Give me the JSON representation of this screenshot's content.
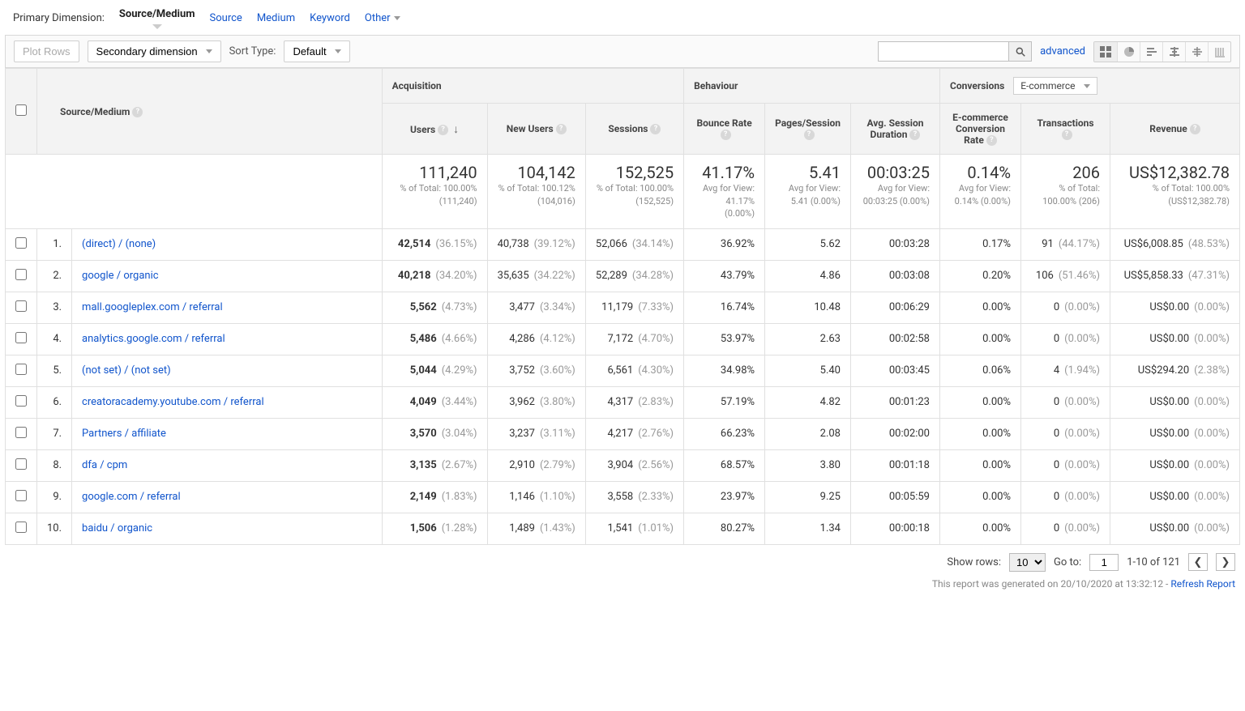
{
  "colors": {
    "link": "#1155cc",
    "header_bg": "#f3f3f3",
    "border": "#e0e0e0",
    "muted": "#999999"
  },
  "primary_dimension": {
    "label": "Primary Dimension:",
    "active": "Source/Medium",
    "options": [
      "Source",
      "Medium",
      "Keyword",
      "Other"
    ]
  },
  "toolbar": {
    "plot_rows": "Plot Rows",
    "secondary_dim": "Secondary dimension",
    "sort_type_label": "Sort Type:",
    "sort_type_value": "Default",
    "advanced": "advanced"
  },
  "columns": {
    "source_medium": "Source/Medium",
    "acquisition": "Acquisition",
    "behaviour": "Behaviour",
    "conversions": "Conversions",
    "conversions_dd": "E-commerce",
    "users": "Users",
    "new_users": "New Users",
    "sessions": "Sessions",
    "bounce": "Bounce Rate",
    "pps": "Pages/Session",
    "dur": "Avg. Session Duration",
    "conv_rate": "E-commerce Conversion Rate",
    "trans": "Transactions",
    "rev": "Revenue"
  },
  "summary": {
    "users": {
      "big": "111,240",
      "small": "% of Total: 100.00% (111,240)"
    },
    "new_users": {
      "big": "104,142",
      "small": "% of Total: 100.12% (104,016)"
    },
    "sessions": {
      "big": "152,525",
      "small": "% of Total: 100.00% (152,525)"
    },
    "bounce": {
      "big": "41.17%",
      "small": "Avg for View: 41.17% (0.00%)"
    },
    "pps": {
      "big": "5.41",
      "small": "Avg for View: 5.41 (0.00%)"
    },
    "dur": {
      "big": "00:03:25",
      "small": "Avg for View: 00:03:25 (0.00%)"
    },
    "conv_rate": {
      "big": "0.14%",
      "small": "Avg for View: 0.14% (0.00%)"
    },
    "trans": {
      "big": "206",
      "small": "% of Total: 100.00% (206)"
    },
    "rev": {
      "big": "US$12,382.78",
      "small": "% of Total: 100.00% (US$12,382.78)"
    }
  },
  "rows": [
    {
      "idx": "1.",
      "name": "(direct) / (none)",
      "users": "42,514",
      "users_pct": "(36.15%)",
      "new": "40,738",
      "new_pct": "(39.12%)",
      "sess": "52,066",
      "sess_pct": "(34.14%)",
      "bounce": "36.92%",
      "pps": "5.62",
      "dur": "00:03:28",
      "conv": "0.17%",
      "trans": "91",
      "trans_pct": "(44.17%)",
      "rev": "US$6,008.85",
      "rev_pct": "(48.53%)"
    },
    {
      "idx": "2.",
      "name": "google / organic",
      "users": "40,218",
      "users_pct": "(34.20%)",
      "new": "35,635",
      "new_pct": "(34.22%)",
      "sess": "52,289",
      "sess_pct": "(34.28%)",
      "bounce": "43.79%",
      "pps": "4.86",
      "dur": "00:03:08",
      "conv": "0.20%",
      "trans": "106",
      "trans_pct": "(51.46%)",
      "rev": "US$5,858.33",
      "rev_pct": "(47.31%)"
    },
    {
      "idx": "3.",
      "name": "mall.googleplex.com / referral",
      "users": "5,562",
      "users_pct": "(4.73%)",
      "new": "3,477",
      "new_pct": "(3.34%)",
      "sess": "11,179",
      "sess_pct": "(7.33%)",
      "bounce": "16.74%",
      "pps": "10.48",
      "dur": "00:06:29",
      "conv": "0.00%",
      "trans": "0",
      "trans_pct": "(0.00%)",
      "rev": "US$0.00",
      "rev_pct": "(0.00%)"
    },
    {
      "idx": "4.",
      "name": "analytics.google.com / referral",
      "users": "5,486",
      "users_pct": "(4.66%)",
      "new": "4,286",
      "new_pct": "(4.12%)",
      "sess": "7,172",
      "sess_pct": "(4.70%)",
      "bounce": "53.97%",
      "pps": "2.63",
      "dur": "00:02:58",
      "conv": "0.00%",
      "trans": "0",
      "trans_pct": "(0.00%)",
      "rev": "US$0.00",
      "rev_pct": "(0.00%)"
    },
    {
      "idx": "5.",
      "name": "(not set) / (not set)",
      "users": "5,044",
      "users_pct": "(4.29%)",
      "new": "3,752",
      "new_pct": "(3.60%)",
      "sess": "6,561",
      "sess_pct": "(4.30%)",
      "bounce": "34.98%",
      "pps": "5.40",
      "dur": "00:03:45",
      "conv": "0.06%",
      "trans": "4",
      "trans_pct": "(1.94%)",
      "rev": "US$294.20",
      "rev_pct": "(2.38%)"
    },
    {
      "idx": "6.",
      "name": "creatoracademy.youtube.com / referral",
      "users": "4,049",
      "users_pct": "(3.44%)",
      "new": "3,962",
      "new_pct": "(3.80%)",
      "sess": "4,317",
      "sess_pct": "(2.83%)",
      "bounce": "57.19%",
      "pps": "4.82",
      "dur": "00:01:23",
      "conv": "0.00%",
      "trans": "0",
      "trans_pct": "(0.00%)",
      "rev": "US$0.00",
      "rev_pct": "(0.00%)"
    },
    {
      "idx": "7.",
      "name": "Partners / affiliate",
      "users": "3,570",
      "users_pct": "(3.04%)",
      "new": "3,237",
      "new_pct": "(3.11%)",
      "sess": "4,217",
      "sess_pct": "(2.76%)",
      "bounce": "66.23%",
      "pps": "2.08",
      "dur": "00:02:00",
      "conv": "0.00%",
      "trans": "0",
      "trans_pct": "(0.00%)",
      "rev": "US$0.00",
      "rev_pct": "(0.00%)"
    },
    {
      "idx": "8.",
      "name": "dfa / cpm",
      "users": "3,135",
      "users_pct": "(2.67%)",
      "new": "2,910",
      "new_pct": "(2.79%)",
      "sess": "3,904",
      "sess_pct": "(2.56%)",
      "bounce": "68.57%",
      "pps": "3.80",
      "dur": "00:01:18",
      "conv": "0.00%",
      "trans": "0",
      "trans_pct": "(0.00%)",
      "rev": "US$0.00",
      "rev_pct": "(0.00%)"
    },
    {
      "idx": "9.",
      "name": "google.com / referral",
      "users": "2,149",
      "users_pct": "(1.83%)",
      "new": "1,146",
      "new_pct": "(1.10%)",
      "sess": "3,558",
      "sess_pct": "(2.33%)",
      "bounce": "23.97%",
      "pps": "9.25",
      "dur": "00:05:59",
      "conv": "0.00%",
      "trans": "0",
      "trans_pct": "(0.00%)",
      "rev": "US$0.00",
      "rev_pct": "(0.00%)"
    },
    {
      "idx": "10.",
      "name": "baidu / organic",
      "users": "1,506",
      "users_pct": "(1.28%)",
      "new": "1,489",
      "new_pct": "(1.43%)",
      "sess": "1,541",
      "sess_pct": "(1.01%)",
      "bounce": "80.27%",
      "pps": "1.34",
      "dur": "00:00:18",
      "conv": "0.00%",
      "trans": "0",
      "trans_pct": "(0.00%)",
      "rev": "US$0.00",
      "rev_pct": "(0.00%)"
    }
  ],
  "pager": {
    "show_rows_label": "Show rows:",
    "show_rows_value": "10",
    "go_to_label": "Go to:",
    "go_to_value": "1",
    "range": "1-10 of 121"
  },
  "generated": {
    "text": "This report was generated on 20/10/2020 at 13:32:12 - ",
    "link": "Refresh Report"
  }
}
